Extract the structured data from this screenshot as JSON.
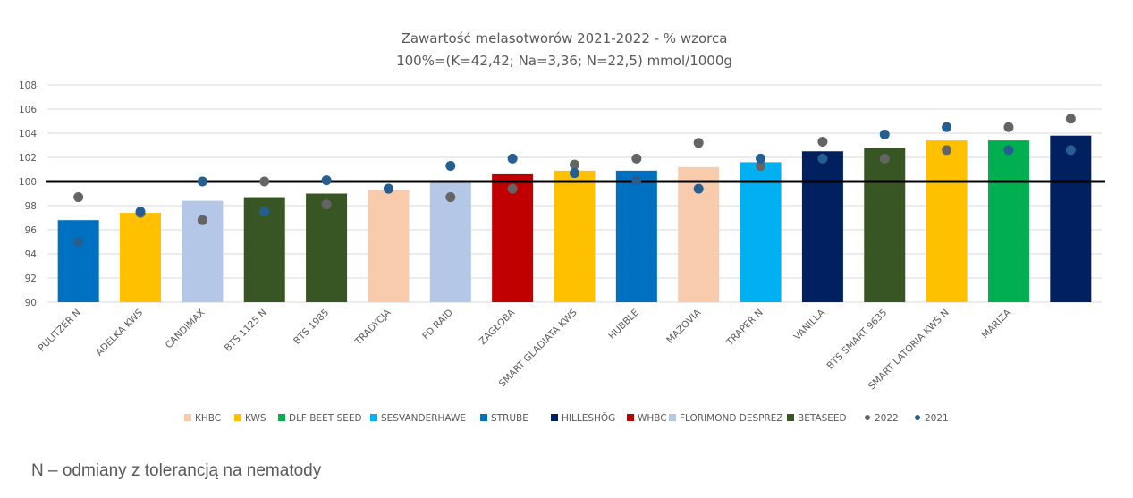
{
  "footnote": "N – odmiany z tolerancją na nematody",
  "chart_data": {
    "type": "bar",
    "title": "Zawartość melasotworów 2021-2022 - % wzorca",
    "subtitle": "100%=(K=42,42; Na=3,36; N=22,5) mmol/1000g",
    "xlabel": "",
    "ylabel": "",
    "ylim": [
      90,
      108
    ],
    "yticks": [
      90,
      92,
      94,
      96,
      98,
      100,
      102,
      104,
      106,
      108
    ],
    "grid": true,
    "reference_line": 100,
    "legend_position": "bottom",
    "categories": [
      "PULITZER N",
      "ADELKA KWS",
      "CANDIMAX",
      "BTS 1125 N",
      "BTS 1985",
      "TRADYCJA",
      "FD RAID",
      "ZAGŁOBA",
      "SMART GLADIATA KWS",
      "HUBBLE",
      "MAZOVIA",
      "TRAPER N",
      "VANILLA",
      "BTS SMART 9635",
      "SMART LATORIA KWS N",
      "MARIZA",
      ""
    ],
    "values": [
      96.8,
      97.4,
      98.4,
      98.7,
      99.0,
      99.3,
      100.0,
      100.6,
      100.9,
      100.9,
      101.2,
      101.6,
      102.5,
      102.8,
      103.4,
      103.4,
      103.8
    ],
    "bar_company": [
      "STRUBE",
      "KWS",
      "FLORIMOND DESPREZ",
      "BETASEED",
      "BETASEED",
      "KHBC",
      "FLORIMOND DESPREZ",
      "WHBC",
      "KWS",
      "STRUBE",
      "KHBC",
      "SESVANDERHAWE",
      "HILLESHÖG",
      "BETASEED",
      "KWS",
      "DLF BEET SEED",
      "HILLESHÖG"
    ],
    "companies": [
      {
        "name": "KHBC",
        "color": "#F8CBAD"
      },
      {
        "name": "KWS",
        "color": "#FFC000"
      },
      {
        "name": "DLF BEET SEED",
        "color": "#00B050"
      },
      {
        "name": "SESVANDERHAWE",
        "color": "#00B0F0"
      },
      {
        "name": "STRUBE",
        "color": "#0070C0"
      },
      {
        "name": "HILLESHÖG",
        "color": "#002060"
      },
      {
        "name": "WHBC",
        "color": "#C00000"
      },
      {
        "name": "FLORIMOND DESPREZ",
        "color": "#B4C7E7"
      },
      {
        "name": "BETASEED",
        "color": "#375623"
      }
    ],
    "series": [
      {
        "name": "2022",
        "type": "scatter",
        "color": "#646464",
        "values": [
          98.7,
          97.4,
          96.8,
          100.0,
          98.1,
          99.4,
          98.7,
          99.4,
          101.4,
          101.9,
          103.2,
          101.3,
          103.3,
          101.9,
          102.6,
          104.5,
          105.2
        ]
      },
      {
        "name": "2021",
        "type": "scatter",
        "color": "#255E91",
        "values": [
          95.0,
          97.5,
          100.0,
          97.5,
          100.1,
          99.4,
          101.3,
          101.9,
          100.7,
          100.1,
          99.4,
          101.9,
          101.9,
          103.9,
          104.5,
          102.6,
          102.6
        ]
      }
    ]
  }
}
